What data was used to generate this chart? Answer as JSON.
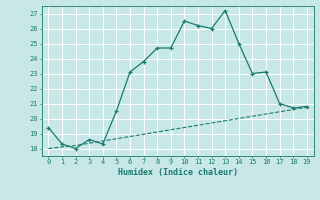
{
  "x": [
    0,
    1,
    2,
    3,
    4,
    5,
    6,
    7,
    8,
    9,
    10,
    11,
    12,
    13,
    14,
    15,
    16,
    17,
    18,
    19
  ],
  "y_main": [
    19.4,
    18.3,
    18.0,
    18.6,
    18.3,
    20.5,
    23.1,
    23.8,
    24.7,
    24.7,
    26.5,
    26.2,
    26.0,
    27.2,
    25.0,
    23.0,
    23.1,
    21.0,
    20.7,
    20.8
  ],
  "y_trend": [
    18.0,
    18.1,
    18.2,
    18.35,
    18.5,
    18.65,
    18.8,
    18.95,
    19.1,
    19.25,
    19.4,
    19.55,
    19.7,
    19.85,
    20.0,
    20.15,
    20.3,
    20.45,
    20.6,
    20.75
  ],
  "line_color": "#1a7a6e",
  "bg_color": "#c8e8e8",
  "grid_color": "#ffffff",
  "xlabel": "Humidex (Indice chaleur)",
  "ylim": [
    17.5,
    27.5
  ],
  "xlim": [
    -0.5,
    19.5
  ],
  "yticks": [
    18,
    19,
    20,
    21,
    22,
    23,
    24,
    25,
    26,
    27
  ],
  "xticks": [
    0,
    1,
    2,
    3,
    4,
    5,
    6,
    7,
    8,
    9,
    10,
    11,
    12,
    13,
    14,
    15,
    16,
    17,
    18,
    19
  ]
}
